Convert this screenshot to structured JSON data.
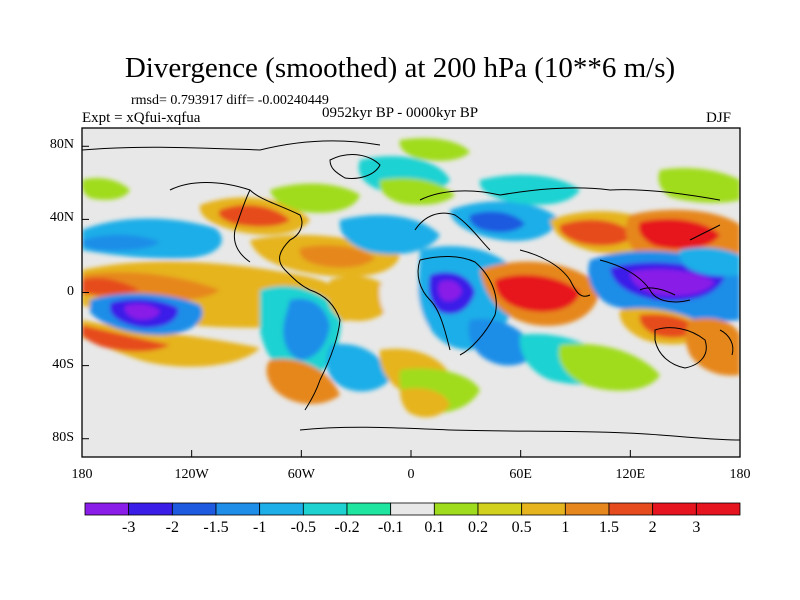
{
  "title": "Divergence (smoothed) at 200 hPa (10**6 m/s)",
  "stats": "rmsd= 0.793917 diff= -0.00240449",
  "experiment": "Expt = xQfui-xqfua",
  "period": "0952kyr BP - 0000kyr BP",
  "season": "DJF",
  "map_data": {
    "type": "filled-contour-map",
    "projection": "cylindrical-equidistant",
    "lon_range": [
      -180,
      180
    ],
    "lat_range": [
      -90,
      90
    ],
    "x_ticks": [
      "180",
      "120W",
      "60W",
      "0",
      "60E",
      "120E",
      "180"
    ],
    "x_tick_values": [
      -180,
      -120,
      -60,
      0,
      60,
      120,
      180
    ],
    "y_ticks": [
      "80N",
      "40N",
      "0",
      "40S",
      "80S"
    ],
    "y_tick_values": [
      80,
      40,
      0,
      -40,
      -80
    ]
  },
  "colorbar": {
    "labels": [
      "-3",
      "-2",
      "-1.5",
      "-1",
      "-0.5",
      "-0.2",
      "-0.1",
      "0.1",
      "0.2",
      "0.5",
      "1",
      "1.5",
      "2",
      "3"
    ],
    "colors": [
      "#8a1ee8",
      "#3a1ee8",
      "#1e5ae0",
      "#1e8ee8",
      "#1eaee8",
      "#1ed2d2",
      "#1ee6a0",
      "#e8e8e8",
      "#a0dc1e",
      "#d2d21e",
      "#e6b41e",
      "#e6871e",
      "#e64b1e",
      "#e6141e",
      "#e6141e"
    ]
  }
}
